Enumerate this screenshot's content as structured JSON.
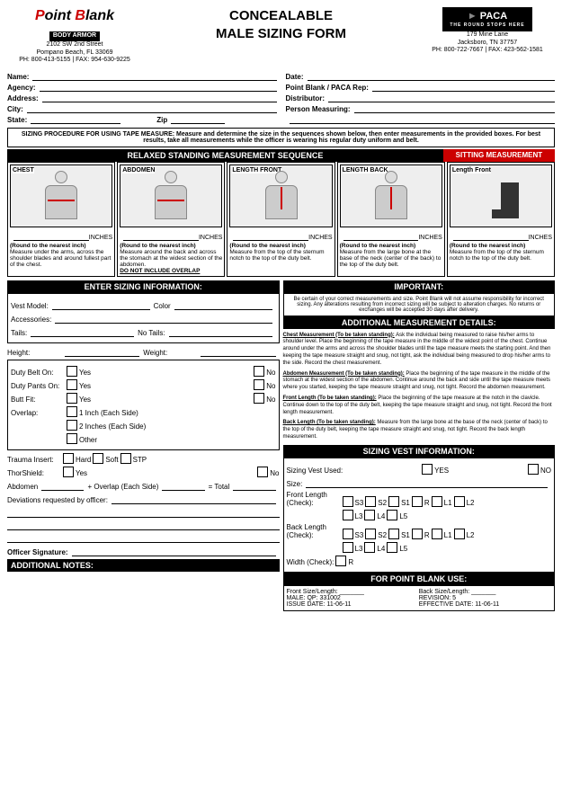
{
  "header": {
    "title_l1": "CONCEALABLE",
    "title_l2": "MALE SIZING FORM"
  },
  "logo_left": {
    "brand": "Point Blank",
    "sub": "BODY ARMOR",
    "addr1": "2102 SW 2nd Street",
    "addr2": "Pompano Beach, FL 33069",
    "phone": "PH: 800-413-5155 | FAX: 954-630-9225"
  },
  "logo_right": {
    "brand": "PACA",
    "tag": "THE ROUND STOPS HERE",
    "addr1": "179 Mine Lane",
    "addr2": "Jacksboro, TN 37757",
    "phone": "PH: 800-722-7667 | FAX: 423-562-1581"
  },
  "info": {
    "name": "Name:",
    "date": "Date:",
    "agency": "Agency:",
    "rep": "Point Blank / PACA Rep:",
    "address": "Address:",
    "distributor": "Distributor:",
    "city": "City:",
    "person": "Person Measuring:",
    "state": "State:",
    "zip": "Zip"
  },
  "procedure": "SIZING PROCEDURE FOR USING TAPE MEASURE: Measure and determine the size in the sequences shown below, then enter measurements in the provided boxes. For best results, take all measurements while the officer is wearing his regular duty uniform and belt.",
  "seq": {
    "relaxed": "RELAXED STANDING MEASUREMENT SEQUENCE",
    "sitting": "SITTING MEASUREMENT"
  },
  "diag": [
    {
      "label": "CHEST",
      "inches": "INCHES",
      "round": "(Round to the nearest inch)",
      "desc": "Measure under the arms, across the shoulder blades and around fullest part of the chest.",
      "arrow": "h"
    },
    {
      "label": "ABDOMEN",
      "inches": "INCHES",
      "round": "(Round to the nearest inch)",
      "desc": "Measure around the back and across the stomach at the widest section of the abdomen.",
      "warn": "DO NOT INCLUDE OVERLAP",
      "arrow": "h"
    },
    {
      "label": "LENGTH FRONT",
      "inches": "INCHES",
      "round": "(Round to the nearest inch)",
      "desc": "Measure from the top of the sternum notch to the top of the duty belt.",
      "arrow": "v"
    },
    {
      "label": "LENGTH BACK",
      "inches": "INCHES",
      "round": "(Round to the nearest inch)",
      "desc": "Measure from the large bone at the base of the neck (center of the back) to the top of the duty belt.",
      "arrow": "v"
    },
    {
      "label": "Length Front",
      "inches": "INCHES",
      "round": "(Round to the nearest inch)",
      "desc": "Measure from the top of the sternum notch to the top of the duty belt.",
      "arrow": "chair"
    }
  ],
  "sizing": {
    "hdr": "ENTER SIZING INFORMATION:",
    "vest": "Vest Model:",
    "color": "Color",
    "acc": "Accessories:",
    "tails": "Tails:",
    "notails": "No Tails:",
    "height": "Height:",
    "weight": "Weight:",
    "duty_belt": "Duty Belt On:",
    "duty_pants": "Duty Pants On:",
    "butt": "Butt Fit:",
    "yes": "Yes",
    "no": "No",
    "overlap": "Overlap:",
    "ov1": "1 Inch (Each Side)",
    "ov2": "2 Inches (Each Side)",
    "ov3": "Other",
    "trauma": "Trauma Insert:",
    "hard": "Hard",
    "soft": "Soft",
    "stp": "STP",
    "thor": "ThorShield:",
    "abd": "Abdomen",
    "abd2": "+ Overlap (Each Side)",
    "abd3": "= Total",
    "dev": "Deviations requested by officer:",
    "sig": "Officer Signature:"
  },
  "important": {
    "hdr": "IMPORTANT:",
    "text": "Be certain of your correct measurements and size. Point Blank will not assume responsibility for incorrect sizing. Any alterations resulting from incorrect sizing will be subject to alteration charges. No returns or exchanges will be accepted 30 days after delivery."
  },
  "details": {
    "hdr": "ADDITIONAL MEASUREMENT DETAILS:",
    "chest_h": "Chest Measurement (To be taken standing):",
    "chest_t": "Ask the individual being measured to raise his/her arms to shoulder level. Place the beginning of the tape measure in the middle of the widest point of the chest. Continue around under the arms and across the shoulder blades until the tape measure meets the starting point. And then keeping the tape measure straight and snug, not tight, ask the individual being measured to drop his/her arms to the side. Record the chest measurement.",
    "abd_h": "Abdomen Measurement (To be taken standing):",
    "abd_t": "Place the beginning of the tape measure in the middle of the stomach at the widest section of the abdomen. Continue around the back and side until the tape measure meets where you started, keeping the tape measure straight and snug, not tight. Record the abdomen measurement.",
    "fl_h": "Front Length (To be taken standing):",
    "fl_t": "Place the beginning of the tape measure at the notch in the clavicle. Continue down to the top of the duty belt, keeping the tape measure straight and snug, not tight. Record the front length measurement.",
    "bl_h": "Back Length (To be taken standing):",
    "bl_t": "Measure from the large bone at the base of the neck (center of back) to the top of the duty belt, keeping the tape measure straight and snug, not tight. Record the back length measurement."
  },
  "vest": {
    "hdr": "SIZING VEST INFORMATION:",
    "used": "Sizing Vest Used:",
    "yes": "YES",
    "no": "NO",
    "size": "Size:",
    "fl": "Front Length (Check):",
    "bl": "Back Length (Check):",
    "width": "Width (Check):",
    "s3": "S3",
    "s2": "S2",
    "s1": "S1",
    "r": "R",
    "l1": "L1",
    "l2": "L2",
    "l3": "L3",
    "l4": "L4",
    "l5": "L5"
  },
  "notes": {
    "hdr": "ADDITIONAL NOTES:"
  },
  "pbuse": {
    "hdr": "FOR POINT BLANK USE:",
    "fsl": "Front Size/Length:",
    "bsl": "Back Size/Length:",
    "male": "MALE: QP: 331002",
    "rev": "REVISION: 5",
    "issue": "ISSUE DATE: 11-06-11",
    "eff": "EFFECTIVE DATE: 11-06-11"
  }
}
